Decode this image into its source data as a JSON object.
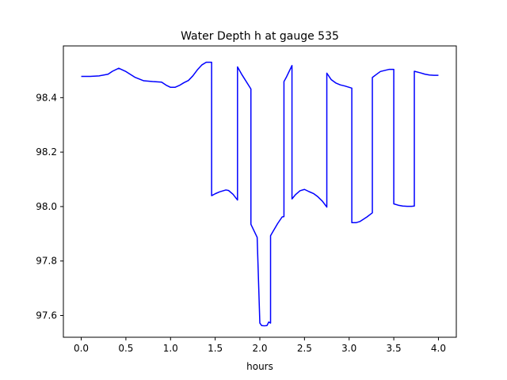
{
  "chart_data": {
    "type": "line",
    "title": "Water Depth h at gauge 535",
    "xlabel": "hours",
    "ylabel": "",
    "xlim": [
      -0.2,
      4.2
    ],
    "ylim": [
      97.52,
      98.59
    ],
    "xticks": [
      0.0,
      0.5,
      1.0,
      1.5,
      2.0,
      2.5,
      3.0,
      3.5,
      4.0
    ],
    "xtick_labels": [
      "0.0",
      "0.5",
      "1.0",
      "1.5",
      "2.0",
      "2.5",
      "3.0",
      "3.5",
      "4.0"
    ],
    "yticks": [
      97.6,
      97.8,
      98.0,
      98.2,
      98.4
    ],
    "ytick_labels": [
      "97.6",
      "97.8",
      "98.0",
      "98.2",
      "98.4"
    ],
    "grid": false,
    "series": [
      {
        "color": "#0000ff",
        "x": [
          0.0,
          0.1,
          0.2,
          0.3,
          0.35,
          0.42,
          0.5,
          0.6,
          0.7,
          0.8,
          0.9,
          0.95,
          1.0,
          1.05,
          1.1,
          1.15,
          1.2,
          1.25,
          1.3,
          1.35,
          1.4,
          1.46,
          1.46,
          1.5,
          1.55,
          1.62,
          1.65,
          1.7,
          1.75,
          1.75,
          1.8,
          1.9,
          1.9,
          1.97,
          2.0,
          2.02,
          2.05,
          2.08,
          2.1,
          2.12,
          2.12,
          2.15,
          2.2,
          2.25,
          2.27,
          2.27,
          2.3,
          2.36,
          2.36,
          2.4,
          2.45,
          2.5,
          2.55,
          2.6,
          2.65,
          2.7,
          2.75,
          2.75,
          2.8,
          2.85,
          2.9,
          2.95,
          3.03,
          3.03,
          3.08,
          3.12,
          3.2,
          3.26,
          3.26,
          3.3,
          3.35,
          3.4,
          3.45,
          3.5,
          3.5,
          3.55,
          3.6,
          3.65,
          3.7,
          3.73,
          3.73,
          3.8,
          3.85,
          3.9,
          3.95,
          4.0
        ],
        "y": [
          98.478,
          98.478,
          98.48,
          98.486,
          98.497,
          98.508,
          98.496,
          98.475,
          98.462,
          98.459,
          98.457,
          98.446,
          98.438,
          98.438,
          98.445,
          98.455,
          98.463,
          98.48,
          98.502,
          98.52,
          98.53,
          98.53,
          98.04,
          98.047,
          98.054,
          98.061,
          98.059,
          98.045,
          98.024,
          98.513,
          98.484,
          98.432,
          97.935,
          97.887,
          97.572,
          97.563,
          97.562,
          97.563,
          97.576,
          97.572,
          97.893,
          97.91,
          97.938,
          97.962,
          97.963,
          98.459,
          98.477,
          98.518,
          98.028,
          98.044,
          98.058,
          98.063,
          98.055,
          98.048,
          98.036,
          98.02,
          97.998,
          98.49,
          98.466,
          98.454,
          98.447,
          98.443,
          98.435,
          97.941,
          97.941,
          97.945,
          97.962,
          97.977,
          98.474,
          98.484,
          98.496,
          98.5,
          98.504,
          98.504,
          98.01,
          98.005,
          98.002,
          98.001,
          98.001,
          98.002,
          98.497,
          98.491,
          98.486,
          98.483,
          98.482,
          98.482
        ]
      }
    ]
  }
}
